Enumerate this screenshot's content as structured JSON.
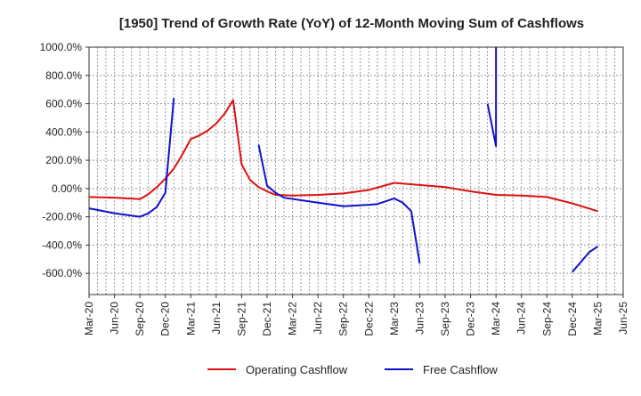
{
  "chart_data": {
    "type": "line",
    "title": "[1950]  Trend of Growth Rate (YoY) of 12-Month Moving Sum of Cashflows",
    "xlabel": "",
    "ylabel": "",
    "x_ticks": [
      "Mar-20",
      "Jun-20",
      "Sep-20",
      "Dec-20",
      "Mar-21",
      "Jun-21",
      "Sep-21",
      "Dec-21",
      "Mar-22",
      "Jun-22",
      "Sep-22",
      "Dec-22",
      "Mar-23",
      "Jun-23",
      "Sep-23",
      "Dec-23",
      "Mar-24",
      "Jun-24",
      "Sep-24",
      "Dec-24",
      "Mar-25",
      "Jun-25"
    ],
    "xlim": [
      "2020-03",
      "2025-06"
    ],
    "y_ticks": [
      1000,
      800,
      600,
      400,
      200,
      0,
      -200,
      -400,
      -600
    ],
    "y_tick_labels": [
      "1000.0%",
      "800.0%",
      "600.0%",
      "400.0%",
      "200.0%",
      "0.00%",
      "-200.0%",
      "-400.0%",
      "-600.0%"
    ],
    "ylim": [
      -750,
      1000
    ],
    "grid": true,
    "legend_position": "bottom",
    "series": [
      {
        "name": "Operating Cashflow",
        "color": "#dd1111",
        "segments": [
          [
            [
              "2020-03",
              -60
            ],
            [
              "2020-06",
              -65
            ],
            [
              "2020-09",
              -75
            ],
            [
              "2020-10",
              -40
            ],
            [
              "2020-11",
              10
            ],
            [
              "2020-12",
              70
            ],
            [
              "2021-01",
              140
            ],
            [
              "2021-02",
              240
            ],
            [
              "2021-03",
              350
            ],
            [
              "2021-04",
              375
            ],
            [
              "2021-05",
              410
            ],
            [
              "2021-06",
              460
            ],
            [
              "2021-07",
              530
            ],
            [
              "2021-08",
              625
            ],
            [
              "2021-09",
              170
            ],
            [
              "2021-10",
              60
            ],
            [
              "2021-11",
              10
            ],
            [
              "2021-12",
              -20
            ],
            [
              "2022-01",
              -45
            ],
            [
              "2022-03",
              -50
            ],
            [
              "2022-06",
              -45
            ],
            [
              "2022-09",
              -35
            ],
            [
              "2022-12",
              -10
            ],
            [
              "2023-03",
              40
            ],
            [
              "2023-06",
              25
            ],
            [
              "2023-09",
              10
            ],
            [
              "2023-12",
              -20
            ],
            [
              "2024-03",
              -45
            ],
            [
              "2024-06",
              -50
            ],
            [
              "2024-09",
              -60
            ],
            [
              "2024-12",
              -105
            ],
            [
              "2025-03",
              -160
            ]
          ]
        ]
      },
      {
        "name": "Free Cashflow",
        "color": "#1111cc",
        "segments": [
          [
            [
              "2020-03",
              -140
            ],
            [
              "2020-06",
              -175
            ],
            [
              "2020-09",
              -200
            ],
            [
              "2020-10",
              -175
            ],
            [
              "2020-11",
              -130
            ],
            [
              "2020-12",
              -30
            ],
            [
              "2021-01",
              640
            ]
          ],
          [
            [
              "2021-11",
              310
            ],
            [
              "2021-12",
              20
            ],
            [
              "2022-01",
              -30
            ],
            [
              "2022-02",
              -65
            ],
            [
              "2022-06",
              -100
            ],
            [
              "2022-09",
              -125
            ],
            [
              "2022-12",
              -115
            ],
            [
              "2023-01",
              -110
            ],
            [
              "2023-02",
              -90
            ],
            [
              "2023-03",
              -70
            ],
            [
              "2023-04",
              -100
            ],
            [
              "2023-05",
              -160
            ],
            [
              "2023-06",
              -530
            ]
          ],
          [
            [
              "2024-02",
              600
            ],
            [
              "2024-03",
              300
            ],
            [
              "2024-03",
              1000
            ]
          ],
          [
            [
              "2024-12",
              -590
            ],
            [
              "2025-02",
              -450
            ],
            [
              "2025-03",
              -410
            ]
          ]
        ]
      }
    ]
  }
}
